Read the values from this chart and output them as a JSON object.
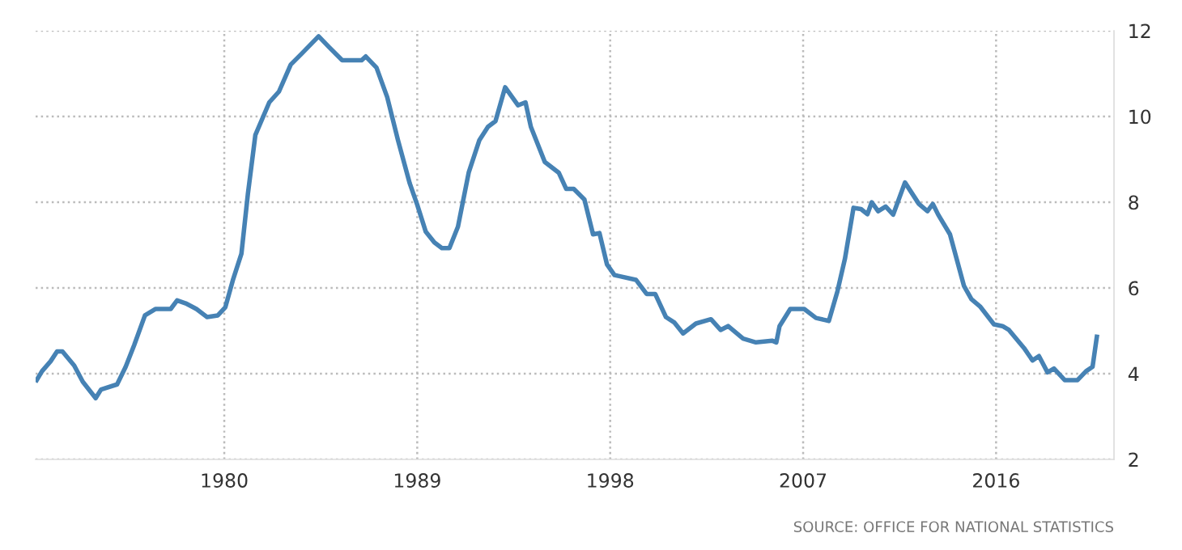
{
  "chart_data": {
    "type": "line",
    "xlim": [
      1971.2,
      2021.5
    ],
    "ylim": [
      2,
      12
    ],
    "xticks": [
      1980,
      1989,
      1998,
      2007,
      2016
    ],
    "yticks": [
      2,
      4,
      6,
      8,
      10,
      12
    ],
    "grid": true,
    "legend": false,
    "marker": "none",
    "line_style": "solid",
    "annotations": [
      "SOURCE: OFFICE FOR NATIONAL STATISTICS"
    ],
    "series": [
      {
        "color": "#4682b4",
        "x": [
          1971.25,
          1971.5,
          1971.9,
          1972.2,
          1972.45,
          1973.0,
          1973.4,
          1974.0,
          1974.25,
          1975.0,
          1975.4,
          1975.8,
          1976.3,
          1976.8,
          1977.5,
          1977.8,
          1978.2,
          1978.7,
          1979.2,
          1979.7,
          1980.05,
          1980.4,
          1980.8,
          1981.1,
          1981.45,
          1982.1,
          1982.55,
          1983.1,
          1983.6,
          1984.4,
          1984.9,
          1985.5,
          1986.4,
          1986.6,
          1987.1,
          1987.6,
          1988.1,
          1988.65,
          1989.0,
          1989.4,
          1989.8,
          1990.15,
          1990.5,
          1990.9,
          1991.4,
          1991.9,
          1992.3,
          1992.65,
          1993.1,
          1993.7,
          1994.05,
          1994.3,
          1994.95,
          1995.6,
          1995.95,
          1996.3,
          1996.8,
          1997.2,
          1997.5,
          1997.85,
          1998.2,
          1999.2,
          1999.7,
          2000.1,
          2000.6,
          2001.0,
          2001.4,
          2002.0,
          2002.7,
          2003.15,
          2003.5,
          2004.2,
          2004.8,
          2005.55,
          2005.75,
          2005.9,
          2006.4,
          2007.05,
          2007.6,
          2008.2,
          2008.6,
          2008.95,
          2009.35,
          2009.7,
          2010.0,
          2010.2,
          2010.5,
          2010.85,
          2011.2,
          2011.75,
          2012.4,
          2012.8,
          2013.05,
          2013.3,
          2013.85,
          2014.5,
          2014.85,
          2015.25,
          2015.9,
          2016.3,
          2016.6,
          2017.3,
          2017.7,
          2018.0,
          2018.4,
          2018.7,
          2019.2,
          2019.8,
          2020.2,
          2020.5,
          2020.7
        ],
        "values": [
          3.85,
          4.06,
          4.29,
          4.52,
          4.52,
          4.19,
          3.81,
          3.43,
          3.63,
          3.75,
          4.16,
          4.67,
          5.36,
          5.51,
          5.51,
          5.71,
          5.64,
          5.51,
          5.32,
          5.36,
          5.55,
          6.18,
          6.8,
          8.19,
          9.57,
          10.33,
          10.58,
          11.21,
          11.46,
          11.87,
          11.61,
          11.31,
          11.31,
          11.4,
          11.14,
          10.45,
          9.45,
          8.44,
          7.94,
          7.31,
          7.06,
          6.93,
          6.93,
          7.43,
          8.69,
          9.45,
          9.76,
          9.89,
          10.68,
          10.26,
          10.33,
          9.76,
          8.94,
          8.69,
          8.31,
          8.31,
          8.06,
          7.25,
          7.28,
          6.55,
          6.3,
          6.19,
          5.86,
          5.86,
          5.32,
          5.19,
          4.94,
          5.17,
          5.27,
          5.02,
          5.11,
          4.82,
          4.73,
          4.77,
          4.73,
          5.11,
          5.51,
          5.51,
          5.3,
          5.23,
          5.92,
          6.68,
          7.87,
          7.84,
          7.72,
          8.0,
          7.79,
          7.9,
          7.71,
          8.46,
          7.96,
          7.79,
          7.96,
          7.71,
          7.25,
          6.05,
          5.74,
          5.57,
          5.15,
          5.11,
          5.02,
          4.6,
          4.31,
          4.41,
          4.03,
          4.12,
          3.85,
          3.85,
          4.06,
          4.16,
          4.86
        ]
      }
    ]
  }
}
